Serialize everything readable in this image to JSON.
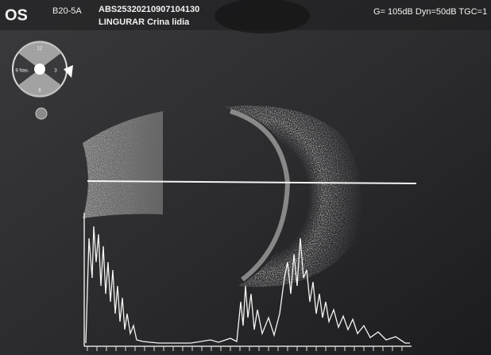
{
  "header": {
    "eye": "OS",
    "probe": "B20-5A",
    "exam_id": "ABS25320210907104130",
    "patient": "LINGURAR Crina lidia",
    "settings": "G= 105dB Dyn=50dB TGC=1"
  },
  "dial": {
    "top": "12",
    "right": "3",
    "bottom": "6",
    "left": "9 Nas."
  }
}
